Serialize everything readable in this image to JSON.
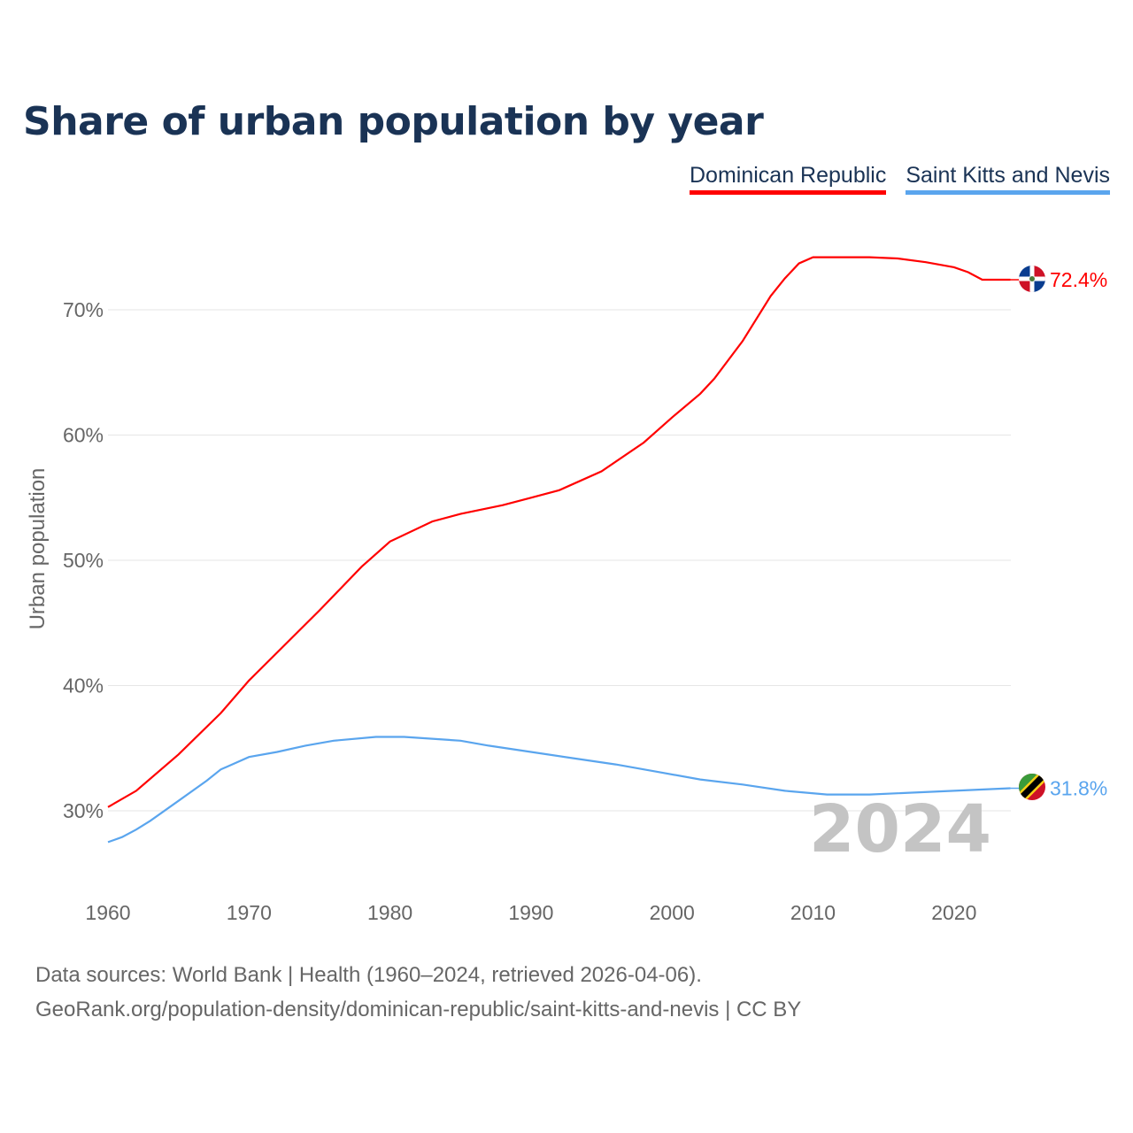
{
  "chart_data": {
    "type": "line",
    "title": "Share of urban population by year",
    "xlabel": "",
    "ylabel": "Urban population",
    "xlim": [
      1960,
      2024
    ],
    "ylim": [
      25,
      75
    ],
    "y_ticks": [
      "30%",
      "40%",
      "50%",
      "60%",
      "70%"
    ],
    "y_tick_values": [
      30,
      40,
      50,
      60,
      70
    ],
    "x_ticks": [
      "1960",
      "1970",
      "1980",
      "1990",
      "2000",
      "2010",
      "2020"
    ],
    "x_tick_values": [
      1960,
      1970,
      1980,
      1990,
      2000,
      2010,
      2020
    ],
    "year_watermark": "2024",
    "grid": true,
    "legend_position": "top-right",
    "series": [
      {
        "name": "Dominican Republic",
        "color": "#ff0000",
        "end_label": "72.4%",
        "x": [
          1960,
          1962,
          1965,
          1968,
          1970,
          1975,
          1978,
          1980,
          1983,
          1985,
          1988,
          1990,
          1992,
          1995,
          1998,
          2000,
          2002,
          2003,
          2005,
          2007,
          2008,
          2009,
          2010,
          2014,
          2016,
          2018,
          2020,
          2021,
          2022,
          2024
        ],
        "values": [
          30.3,
          31.6,
          34.5,
          37.8,
          40.4,
          46.0,
          49.5,
          51.5,
          53.1,
          53.7,
          54.4,
          55.0,
          55.6,
          57.1,
          59.4,
          61.4,
          63.3,
          64.5,
          67.5,
          71.1,
          72.5,
          73.7,
          74.2,
          74.2,
          74.1,
          73.8,
          73.4,
          73.0,
          72.4,
          72.4
        ]
      },
      {
        "name": "Saint Kitts and Nevis",
        "color": "#5aa5ee",
        "end_label": "31.8%",
        "x": [
          1960,
          1961,
          1962,
          1963,
          1965,
          1967,
          1968,
          1970,
          1972,
          1974,
          1976,
          1979,
          1981,
          1985,
          1987,
          1990,
          1993,
          1996,
          1999,
          2002,
          2005,
          2008,
          2011,
          2014,
          2016,
          2020,
          2024
        ],
        "values": [
          27.5,
          27.9,
          28.5,
          29.2,
          30.8,
          32.4,
          33.3,
          34.3,
          34.7,
          35.2,
          35.6,
          35.9,
          35.9,
          35.6,
          35.2,
          34.7,
          34.2,
          33.7,
          33.1,
          32.5,
          32.1,
          31.6,
          31.3,
          31.3,
          31.4,
          31.6,
          31.8
        ]
      }
    ]
  },
  "footer": {
    "line1": "Data sources: World Bank | Health (1960–2024, retrieved 2026-04-06).",
    "line2": "GeoRank.org/population-density/dominican-republic/saint-kitts-and-nevis | CC BY"
  }
}
